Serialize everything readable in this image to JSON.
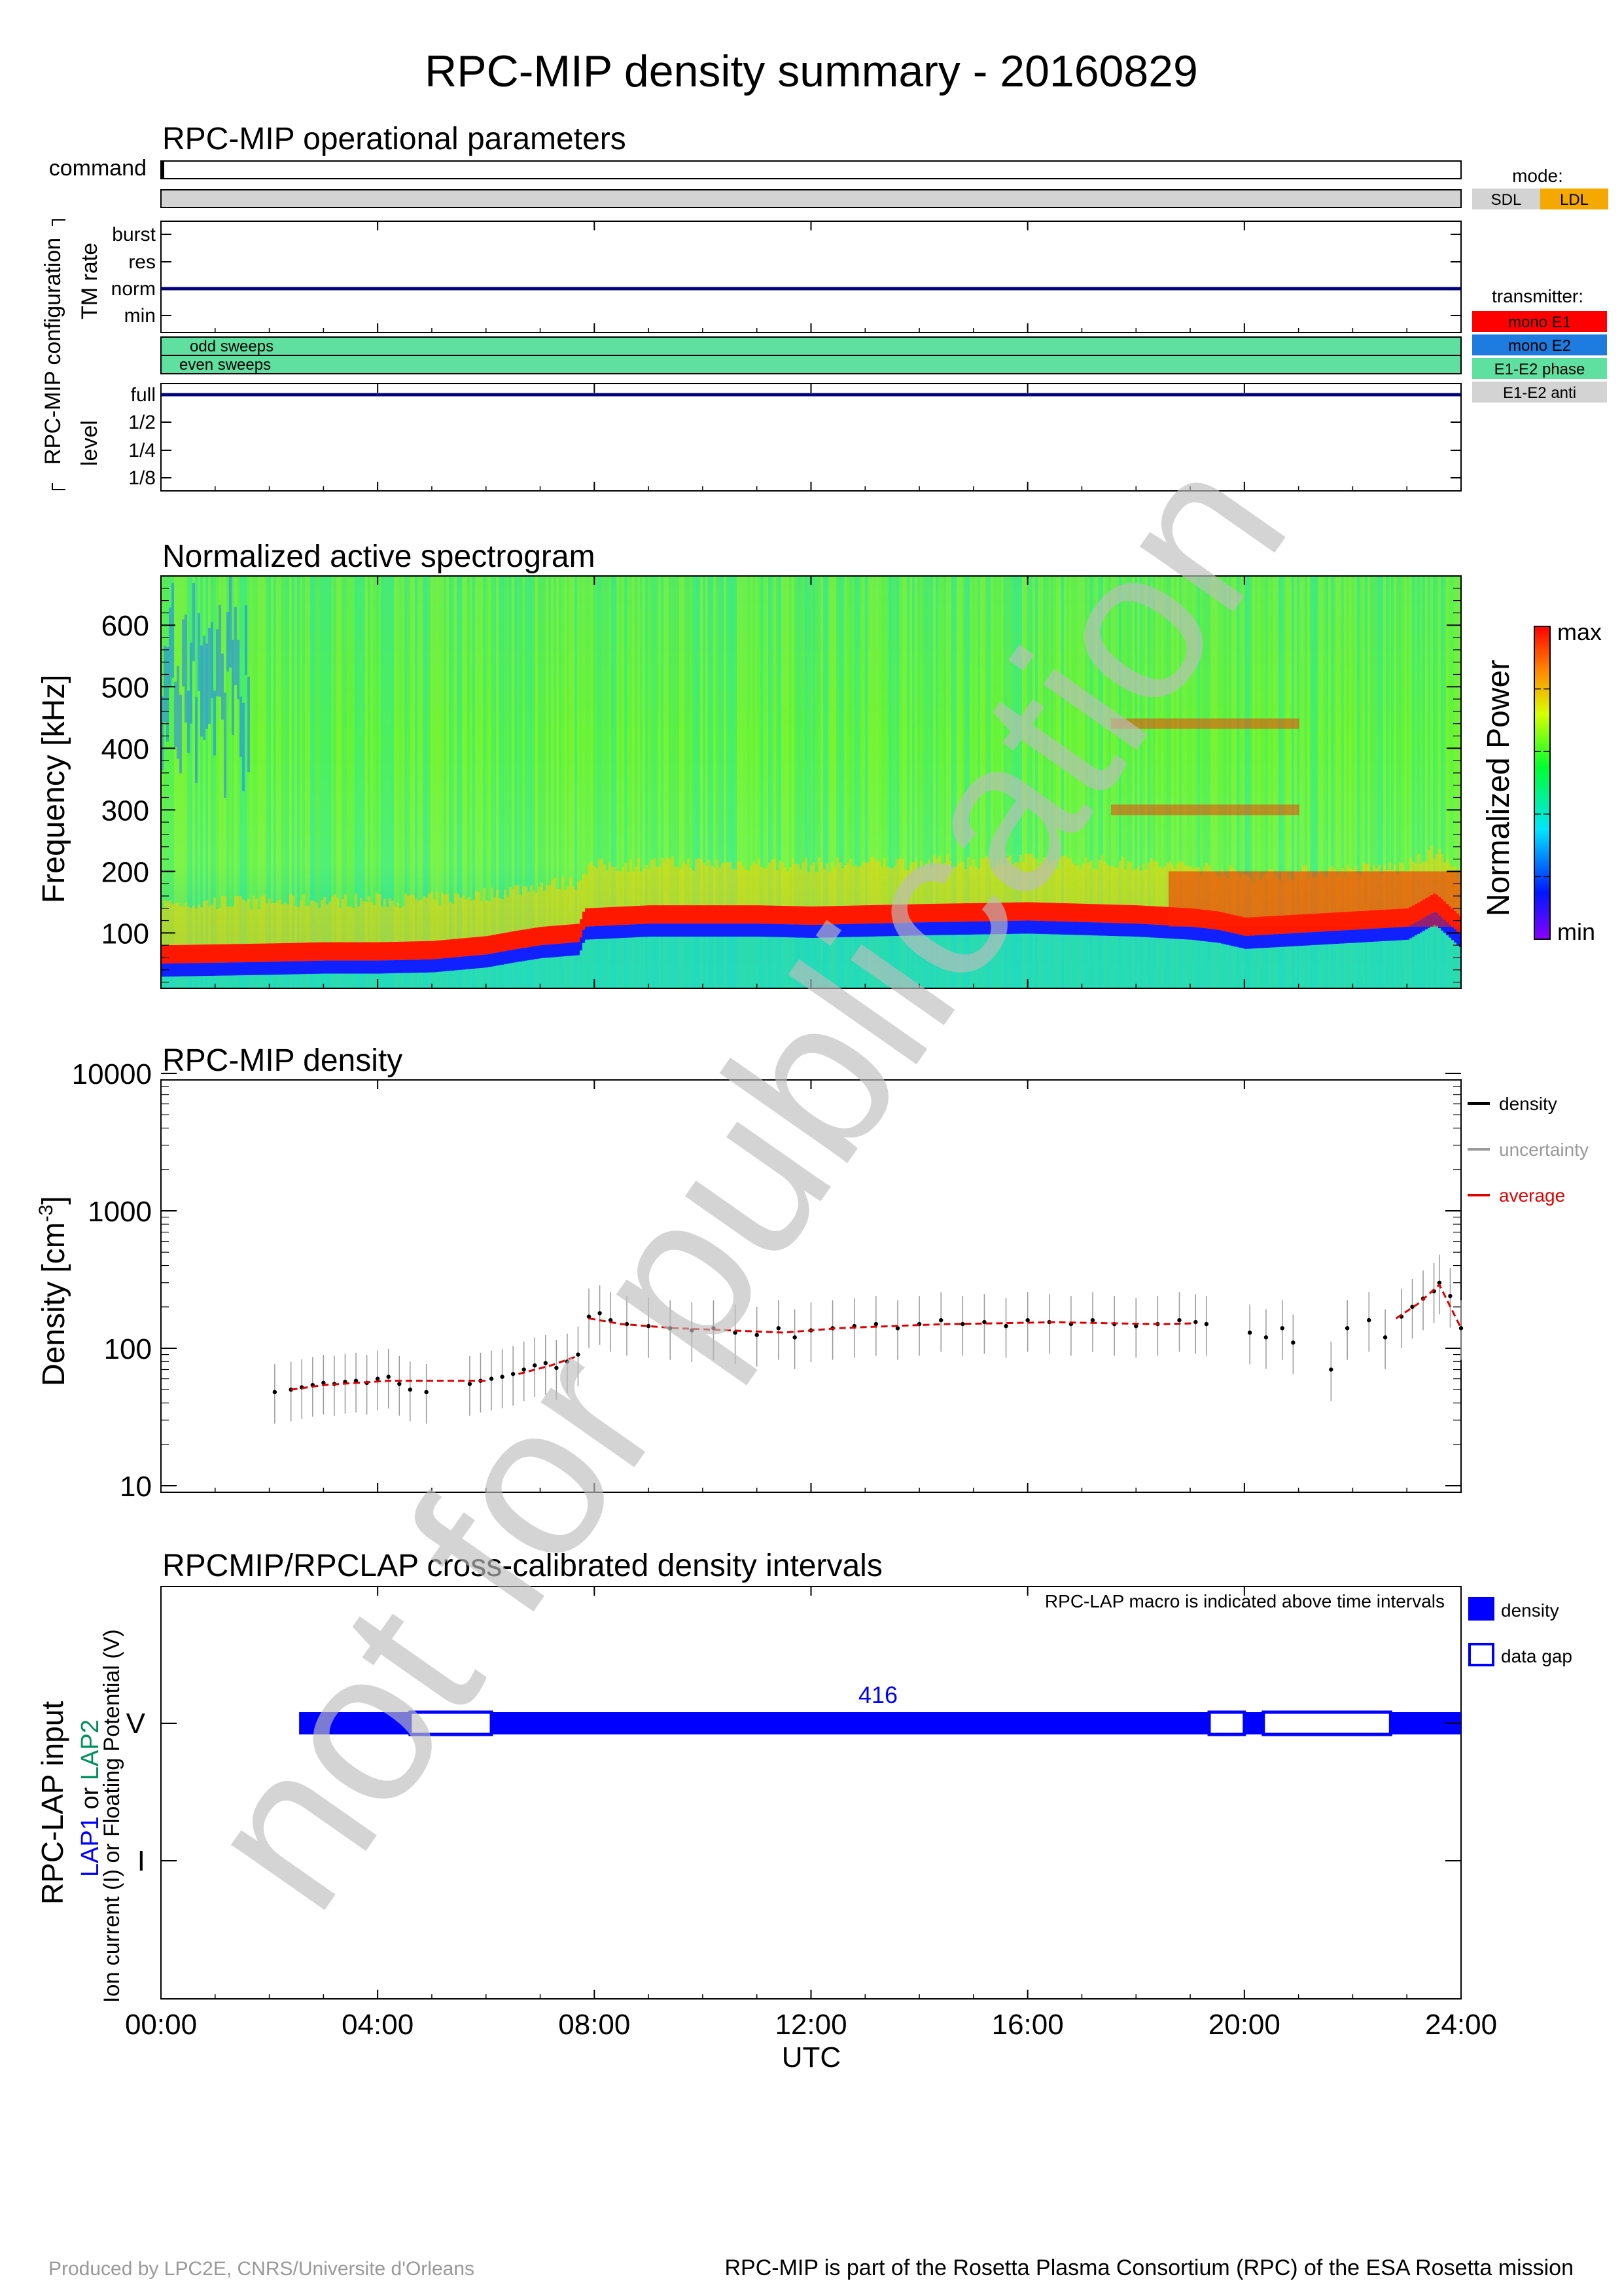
{
  "title": "RPC-MIP density summary - 20160829",
  "panel1": {
    "title": "RPC-MIP operational parameters",
    "command_label": "command",
    "group_label": "RPC-MIP configuration",
    "tm_label": "TM rate",
    "tm_levels": [
      "burst",
      "res",
      "norm",
      "min"
    ],
    "tm_value": "norm",
    "sweep_odd": "odd sweeps",
    "sweep_even": "even sweeps",
    "level_label": "level",
    "level_levels": [
      "full",
      "1/2",
      "1/4",
      "1/8"
    ],
    "level_value": "full",
    "mode_legend_title": "mode:",
    "mode_legend": [
      {
        "label": "SDL",
        "color": "#d3d3d3"
      },
      {
        "label": "LDL",
        "color": "#f5a800"
      }
    ],
    "transmitter_legend_title": "transmitter:",
    "transmitter_legend": [
      {
        "label": "mono E1",
        "color": "#ff0000"
      },
      {
        "label": "mono E2",
        "color": "#1e7be0"
      },
      {
        "label": "E1-E2 phase",
        "color": "#5fe0a0"
      },
      {
        "label": "E1-E2 anti",
        "color": "#d3d3d3"
      }
    ]
  },
  "panel2": {
    "title": "Normalized active spectrogram",
    "ylabel": "Frequency [kHz]",
    "yticks": [
      "100",
      "200",
      "300",
      "400",
      "500",
      "600"
    ],
    "colorbar_label": "Normalized Power",
    "colorbar_max": "max",
    "colorbar_min": "min"
  },
  "panel3": {
    "title": "RPC-MIP density",
    "ylabel": "Density [cm",
    "ylabel_sup": "-3",
    "ylabel_end": "]",
    "yticks": [
      "10",
      "100",
      "1000",
      "10000"
    ],
    "legend": [
      {
        "label": "density",
        "color": "#000000"
      },
      {
        "label": "uncertainty",
        "color": "#999999"
      },
      {
        "label": "average",
        "color": "#e00000"
      }
    ]
  },
  "panel4": {
    "title": "RPCMIP/RPCLAP cross-calibrated density intervals",
    "note": "RPC-LAP macro is indicated above time intervals",
    "macro_label": "416",
    "ylabel_main": "RPC-LAP input",
    "ylabel_lap1": "LAP1",
    "ylabel_or1": " or ",
    "ylabel_lap2": "LAP2",
    "ylabel_line3": "Ion current (I) or Floating Potential (V)",
    "ytick_v": "V",
    "ytick_i": "I",
    "legend": [
      {
        "label": "density",
        "type": "filled"
      },
      {
        "label": "data gap",
        "type": "open"
      }
    ]
  },
  "xaxis": {
    "ticks": [
      "00:00",
      "04:00",
      "08:00",
      "12:00",
      "16:00",
      "20:00",
      "24:00"
    ],
    "label": "UTC"
  },
  "watermark": "not for publication",
  "footer_left": "Produced by LPC2E, CNRS/Universite d'Orleans",
  "footer_right": "RPC-MIP is part of the Rosetta Plasma Consortium (RPC) of the ESA Rosetta mission",
  "chart_data": [
    {
      "type": "line",
      "title": "RPC-MIP operational parameters",
      "series": [
        {
          "name": "TM rate",
          "x": [
            0,
            24
          ],
          "y": [
            "norm",
            "norm"
          ]
        },
        {
          "name": "level",
          "x": [
            0,
            24
          ],
          "y": [
            "full",
            "full"
          ]
        }
      ],
      "mode": "SDL",
      "transmitter": "E1-E2 phase",
      "xlim": [
        0,
        24
      ]
    },
    {
      "type": "heatmap",
      "title": "Normalized active spectrogram",
      "ylabel": "Frequency [kHz]",
      "ylim": [
        10,
        680
      ],
      "xlim": [
        0,
        24
      ],
      "plasma_line_khz": {
        "x": [
          0,
          2,
          3,
          4,
          5,
          6,
          6.5,
          7,
          7.7,
          7.8,
          9,
          11,
          12,
          14,
          16,
          18,
          19,
          19.5,
          20,
          21,
          22,
          23,
          23.5,
          24
        ],
        "y": [
          65,
          68,
          70,
          70,
          72,
          80,
          88,
          95,
          100,
          125,
          130,
          130,
          128,
          132,
          135,
          130,
          125,
          120,
          110,
          115,
          120,
          125,
          150,
          110
        ]
      }
    },
    {
      "type": "scatter",
      "title": "RPC-MIP density",
      "ylabel": "Density [cm-3]",
      "yscale": "log",
      "ylim": [
        10,
        10000
      ],
      "xlim": [
        0,
        24
      ],
      "series": [
        {
          "name": "density",
          "x": [
            2.1,
            2.4,
            2.6,
            2.8,
            3.0,
            3.2,
            3.4,
            3.6,
            3.8,
            4.0,
            4.2,
            4.4,
            4.6,
            4.9,
            5.7,
            5.9,
            6.1,
            6.3,
            6.5,
            6.7,
            6.9,
            7.1,
            7.3,
            7.5,
            7.7,
            7.9,
            8.1,
            8.3,
            8.6,
            9.0,
            9.4,
            9.8,
            10.2,
            10.6,
            11.0,
            11.4,
            11.7,
            12.0,
            12.4,
            12.8,
            13.2,
            13.6,
            14.0,
            14.4,
            14.8,
            15.2,
            15.6,
            16.0,
            16.4,
            16.8,
            17.2,
            17.6,
            18.0,
            18.4,
            18.8,
            19.1,
            19.3,
            20.1,
            20.4,
            20.7,
            20.9,
            21.6,
            21.9,
            22.3,
            22.6,
            22.9,
            23.1,
            23.3,
            23.5,
            23.6,
            23.8,
            24.0
          ],
          "y": [
            48,
            50,
            52,
            54,
            56,
            55,
            57,
            58,
            56,
            60,
            62,
            55,
            50,
            48,
            55,
            58,
            60,
            62,
            65,
            70,
            75,
            78,
            72,
            80,
            90,
            170,
            180,
            160,
            150,
            145,
            140,
            135,
            140,
            130,
            125,
            140,
            120,
            135,
            140,
            145,
            150,
            140,
            150,
            160,
            150,
            155,
            145,
            160,
            155,
            150,
            160,
            150,
            145,
            150,
            160,
            155,
            150,
            130,
            120,
            140,
            110,
            70,
            140,
            160,
            120,
            170,
            200,
            230,
            260,
            300,
            240,
            140
          ]
        },
        {
          "name": "average",
          "x": [
            2.4,
            3.0,
            3.6,
            4.2,
            6.0,
            6.6,
            7.2,
            7.7,
            7.9,
            8.5,
            9.5,
            10.5,
            11.5,
            12.5,
            13.5,
            14.5,
            15.5,
            16.5,
            17.5,
            18.5,
            19.1,
            22.8,
            23.2,
            23.6,
            24.0
          ],
          "y": [
            50,
            54,
            56,
            58,
            58,
            65,
            75,
            88,
            165,
            150,
            140,
            135,
            130,
            140,
            145,
            150,
            152,
            155,
            152,
            150,
            152,
            165,
            210,
            290,
            140
          ]
        }
      ]
    },
    {
      "type": "bar",
      "title": "RPCMIP/RPCLAP cross-calibrated density intervals",
      "categories": [
        "V",
        "I"
      ],
      "density_intervals_V": [
        [
          2.55,
          4.6
        ],
        [
          6.1,
          19.35
        ],
        [
          20.0,
          20.35
        ],
        [
          22.7,
          24.0
        ]
      ],
      "data_gaps_V": [
        [
          4.6,
          6.1
        ],
        [
          19.35,
          20.0
        ],
        [
          20.35,
          22.7
        ]
      ],
      "macro": "416",
      "xlim": [
        0,
        24
      ]
    }
  ]
}
